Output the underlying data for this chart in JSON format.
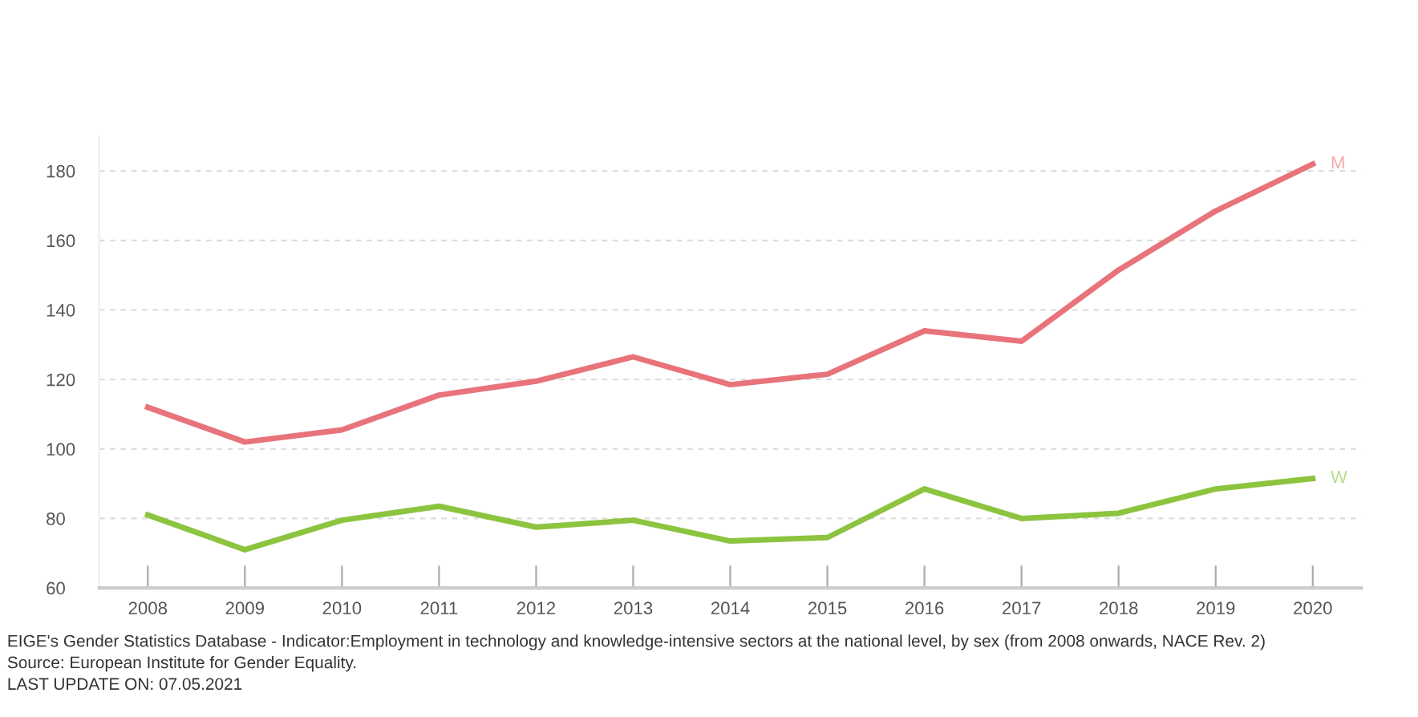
{
  "chart_data": {
    "type": "line",
    "x": [
      2008,
      2009,
      2010,
      2011,
      2012,
      2013,
      2014,
      2015,
      2016,
      2017,
      2018,
      2019,
      2020
    ],
    "series": [
      {
        "name": "M",
        "color": "#e8737a",
        "values": [
          112,
          102,
          105.5,
          115.5,
          119.5,
          126.5,
          118.5,
          121.5,
          134,
          131,
          151.5,
          168.5,
          182
        ]
      },
      {
        "name": "W",
        "color": "#8cc43f",
        "values": [
          81,
          71,
          79.5,
          83.5,
          77.5,
          79.5,
          73.5,
          74.5,
          88.5,
          80,
          81.5,
          88.5,
          91.5
        ]
      }
    ],
    "xlim": [
      2007.5,
      2020.5
    ],
    "xticks": [
      2008,
      2009,
      2010,
      2011,
      2012,
      2013,
      2014,
      2015,
      2016,
      2017,
      2018,
      2019,
      2020
    ],
    "ylim": [
      60,
      190
    ],
    "yticks": [
      60,
      80,
      100,
      120,
      140,
      160,
      180
    ],
    "grid": "y",
    "legend": false,
    "marker": "none",
    "line_style": "solid",
    "annotations": [
      "EIGE's Gender Statistics Database - Indicator:Employment in technology and knowledge-intensive sectors at the national level, by sex (from 2008 onwards, NACE Rev. 2)",
      "Source: European Institute for Gender Equality.",
      "LAST UPDATE ON: 07.05.2021"
    ]
  }
}
